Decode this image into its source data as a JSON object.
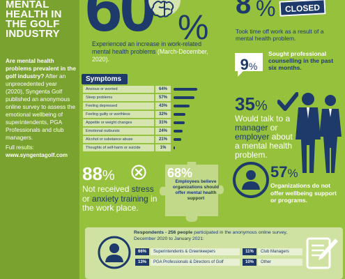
{
  "left": {
    "headline": "MENTAL HEALTH IN THE GOLF INDUSTRY",
    "intro_bold": "Are mental health problems prevalent in the golf industry?",
    "intro_rest": " After an unprecedented year (2020), Syngenta Golf published an anonymous online survey to assess the emotional wellbeing of superintendents, PGA Professionals and club managers.",
    "full_results_label": "Full results:",
    "url": "www.syngentagolf.com"
  },
  "stat60": {
    "number": "60",
    "percent": "%",
    "text": "Experienced an increase in work-related mental health problems",
    "date": "(March-December, 2020)."
  },
  "symptoms": {
    "title": "Symptoms",
    "items": [
      {
        "label": "Anxious or worried",
        "value": "64%",
        "fraction": 0.64
      },
      {
        "label": "Sleep problems",
        "value": "57%",
        "fraction": 0.57
      },
      {
        "label": "Feeling depressed",
        "value": "43%",
        "fraction": 0.43
      },
      {
        "label": "Feeling guilty or worthless",
        "value": "32%",
        "fraction": 0.32
      },
      {
        "label": "Appetite or weight changes",
        "value": "31%",
        "fraction": 0.31
      },
      {
        "label": "Emotional outbursts",
        "value": "24%",
        "fraction": 0.24
      },
      {
        "label": "Alcohol or substance abuse",
        "value": "21%",
        "fraction": 0.21
      },
      {
        "label": "Thoughts of self-harm or suicide",
        "value": "1%",
        "fraction": 0.01
      }
    ]
  },
  "stat8": {
    "number": "8",
    "percent": "%",
    "sign": "CLOSED",
    "text": "Took time off work as a result of a mental health problem."
  },
  "stat9": {
    "value": "9",
    "percent": "%",
    "text_a": "Sought professional",
    "text_b": "counselling in the past six months."
  },
  "stat35": {
    "number": "35",
    "percent": "%",
    "text_1": "Would talk to a ",
    "manager": "manager",
    "text_2": " or ",
    "employer": "employer",
    "text_3": " about a mental health problem."
  },
  "stat88": {
    "number": "88",
    "percent": "%",
    "text_1": "Not received ",
    "stress": "stress",
    "text_2": " or ",
    "anxiety": "anxiety training",
    "text_3": " in the work place."
  },
  "stat68": {
    "number": "68%",
    "text": "Employees believe organizations should offer mental health support"
  },
  "stat57": {
    "number": "57",
    "percent": "%",
    "text": "Organizations do not offer wellbeing support or programs."
  },
  "respondents": {
    "intro_bold": "Respondents - 256 people",
    "intro_rest": " participated in the anonymous online survey, December 2020 to January 2021:",
    "rows": [
      {
        "pct": "66%",
        "label": "Superintendents & Greenkeepers"
      },
      {
        "pct": "13%",
        "label": "PGA Professionals & Directors of Golf"
      },
      {
        "pct": "11%",
        "label": "Club Managers"
      },
      {
        "pct": "10%",
        "label": "Other"
      }
    ]
  },
  "colors": {
    "background": "#95c13d",
    "navy": "#1d3a6b",
    "left_column": "#7aa22f",
    "panel": "#cfe2a2"
  }
}
